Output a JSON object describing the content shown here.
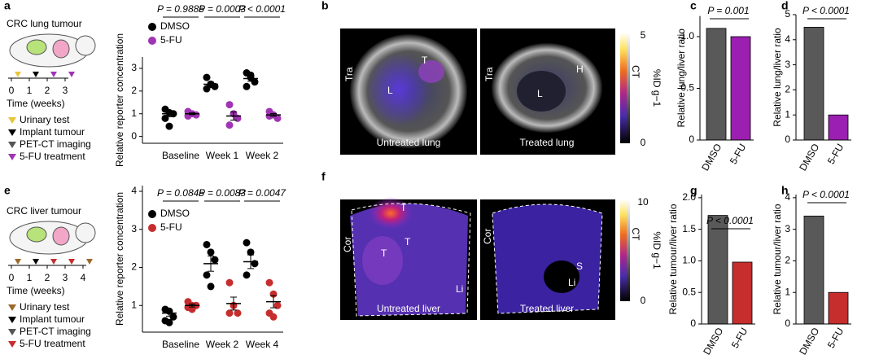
{
  "chart_data": [
    {
      "panel": "a",
      "type": "dot",
      "ylabel": "Relative reporter concentration",
      "categories": [
        "Baseline",
        "Week 1",
        "Week 2"
      ],
      "annotations": [
        "P = 0.9886",
        "P = 0.0003",
        "P < 0.0001"
      ],
      "ylim": [
        -0.3,
        3.5
      ],
      "yticks": [
        0,
        1,
        2,
        3
      ],
      "series": [
        {
          "name": "DMSO",
          "color": "#000000",
          "points": [
            [
              1.2,
              1.05,
              1.0,
              0.8,
              0.45
            ],
            [
              2.6,
              2.3,
              2.2,
              2.1,
              2.3
            ],
            [
              2.8,
              2.6,
              2.4,
              2.2,
              2.7
            ]
          ],
          "means": [
            1.0,
            2.3,
            2.55
          ],
          "sems": [
            0.13,
            0.09,
            0.12
          ]
        },
        {
          "name": "5-FU",
          "color": "#a034b4",
          "points": [
            [
              1.1,
              1.0,
              0.95,
              0.9
            ],
            [
              1.4,
              1.0,
              0.8,
              0.5
            ],
            [
              1.1,
              0.95,
              0.8,
              0.9
            ]
          ],
          "means": [
            1.0,
            0.9,
            0.95
          ],
          "sems": [
            0.04,
            0.18,
            0.06
          ]
        }
      ]
    },
    {
      "panel": "c",
      "type": "bar",
      "ylabel": "Relative lung/liver ratio",
      "categories": [
        "DMSO",
        "5-FU"
      ],
      "values": [
        1.08,
        1.0
      ],
      "colors": [
        "#595959",
        "#9b1fb0"
      ],
      "annotation": "P = 0.001",
      "ylim": [
        0,
        1.2
      ],
      "yticks": [
        0,
        {
          "value": 0.5,
          "label": "0.5"
        },
        {
          "value": 1,
          "label": "1.0"
        }
      ]
    },
    {
      "panel": "d",
      "type": "bar",
      "ylabel": "Relative lung/liver ratio",
      "categories": [
        "DMSO",
        "5-FU"
      ],
      "values": [
        4.5,
        1.0
      ],
      "colors": [
        "#595959",
        "#9b1fb0"
      ],
      "annotation": "P < 0.0001",
      "ylim": [
        0,
        5
      ],
      "yticks": [
        0,
        1,
        2,
        3,
        4,
        5
      ]
    },
    {
      "panel": "e",
      "type": "dot",
      "ylabel": "Relative reporter concentration",
      "categories": [
        "Baseline",
        "Week 2",
        "Week 4"
      ],
      "annotations": [
        "P = 0.0845",
        "P = 0.0083",
        "P = 0.0047"
      ],
      "ylim": [
        0.3,
        4.15
      ],
      "yticks": [
        1,
        2,
        3,
        4
      ],
      "series": [
        {
          "name": "DMSO",
          "color": "#000000",
          "points": [
            [
              0.9,
              0.85,
              0.7,
              0.6,
              0.55
            ],
            [
              2.6,
              2.4,
              2.2,
              1.8,
              1.5
            ],
            [
              2.65,
              2.4,
              2.1,
              1.8
            ]
          ],
          "means": [
            0.8,
            2.1,
            2.15
          ],
          "sems": [
            0.08,
            0.2,
            0.18
          ]
        },
        {
          "name": "5-FU",
          "color": "#c62d2d",
          "points": [
            [
              1.1,
              1.0,
              1.0,
              0.95,
              0.9
            ],
            [
              1.6,
              1.0,
              0.8,
              0.8
            ],
            [
              1.6,
              1.3,
              1.0,
              0.8,
              0.7
            ]
          ],
          "means": [
            1.0,
            1.05,
            1.1
          ],
          "sems": [
            0.04,
            0.17,
            0.16
          ]
        }
      ]
    },
    {
      "panel": "g",
      "type": "bar",
      "ylabel": "Relative tumour/liver ratio",
      "categories": [
        "DMSO",
        "5-FU"
      ],
      "values": [
        1.72,
        0.98
      ],
      "colors": [
        "#595959",
        "#c62d2d"
      ],
      "annotation": "P < 0.0001",
      "ylim": [
        0,
        2.05
      ],
      "yticks": [
        0,
        {
          "value": 0.5,
          "label": "0.5"
        },
        {
          "value": 1,
          "label": "1.0"
        },
        {
          "value": 1.5,
          "label": "1.5"
        },
        {
          "value": 2,
          "label": "2.0"
        }
      ]
    },
    {
      "panel": "h",
      "type": "bar",
      "ylabel": "Relative tumour/liver ratio",
      "categories": [
        "DMSO",
        "5-FU"
      ],
      "values": [
        3.42,
        1.0
      ],
      "colors": [
        "#595959",
        "#c62d2d"
      ],
      "annotation": "P < 0.0001",
      "ylim": [
        0,
        4.1
      ],
      "yticks": [
        0,
        1,
        2,
        3,
        4
      ]
    }
  ],
  "schematics": [
    {
      "title": "CRC lung tumour",
      "timeline": [
        "0",
        "1",
        "2",
        "3"
      ],
      "xlabel": "Time (weeks)",
      "legend": [
        {
          "name": "Urinary test",
          "color": "#e8c53a"
        },
        {
          "name": "Implant tumour",
          "color": "#000000"
        },
        {
          "name": "PET-CT imaging",
          "color": "#555555"
        },
        {
          "name": "5-FU treatment",
          "color": "#a034b4"
        }
      ]
    },
    {
      "title": "CRC liver tumour",
      "timeline": [
        "0",
        "1",
        "2",
        "3",
        "4"
      ],
      "xlabel": "Time (weeks)",
      "legend": [
        {
          "name": "Urinary test",
          "color": "#9a6a2a"
        },
        {
          "name": "Implant tumour",
          "color": "#000000"
        },
        {
          "name": "PET-CT imaging",
          "color": "#555555"
        },
        {
          "name": "5-FU treatment",
          "color": "#c62d2d"
        }
      ]
    }
  ],
  "images": [
    {
      "panel": "b",
      "left": {
        "caption": "Untreated lung",
        "labels": [
          "Tra",
          "L",
          "T"
        ]
      },
      "right": {
        "caption": "Treated lung",
        "labels": [
          "Tra",
          "L",
          "H"
        ]
      },
      "colorbar": {
        "ticks": [
          "5",
          "0"
        ],
        "label": "%ID g−1",
        "ct": "CT"
      }
    },
    {
      "panel": "f",
      "left": {
        "caption": "Untreated liver",
        "labels": [
          "Cor",
          "T",
          "T",
          "T",
          "Li"
        ]
      },
      "right": {
        "caption": "Treated liver",
        "labels": [
          "Cor",
          "S",
          "Li"
        ]
      },
      "colorbar": {
        "ticks": [
          "10",
          "0"
        ],
        "label": "%ID g−1",
        "ct": "CT"
      }
    }
  ]
}
